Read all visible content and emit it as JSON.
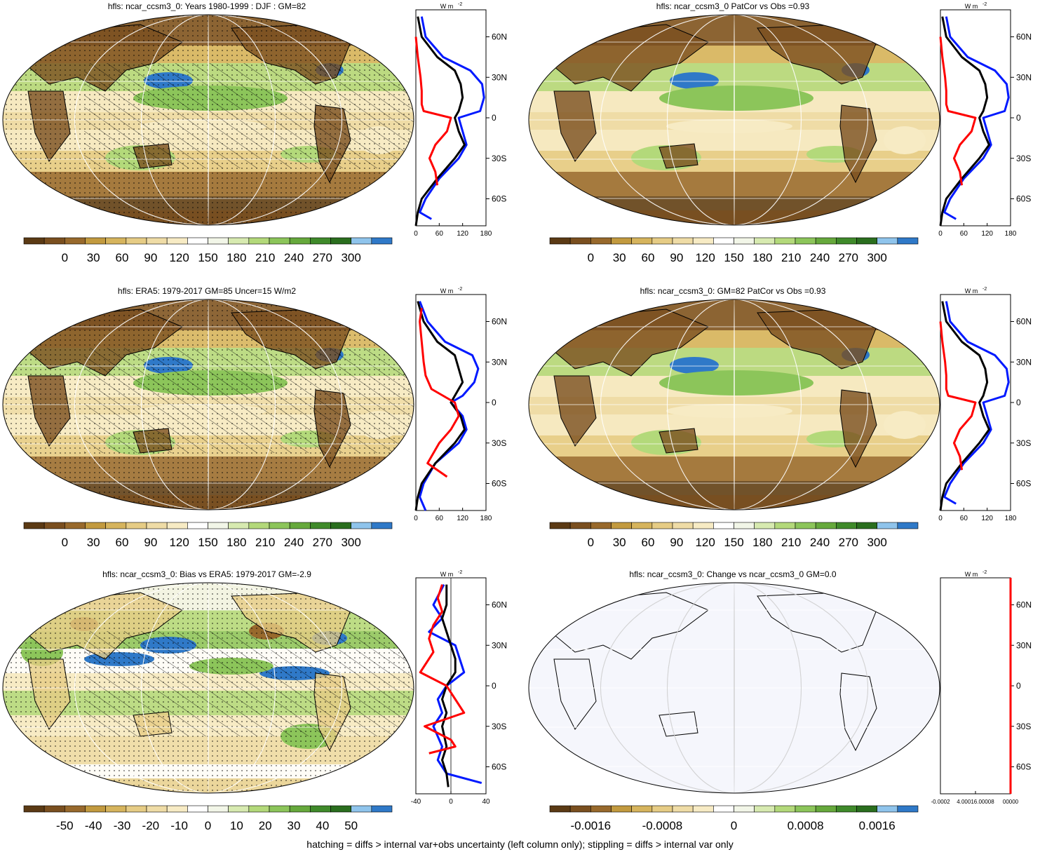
{
  "footer": "hatching = diffs > internal var+obs uncertainty (left column only); stippling = diffs > internal var only",
  "colors": {
    "ramp": [
      "#5b3a14",
      "#7a4f1f",
      "#98692c",
      "#c29a3f",
      "#d6b45d",
      "#e6cc85",
      "#efdca6",
      "#f7ebc4",
      "#ffffff",
      "#f2f6e8",
      "#d7eab0",
      "#b3d97a",
      "#8cc55a",
      "#66a93c",
      "#3f8a2a",
      "#2a6e1e",
      "#8fc4ec",
      "#2f79c8"
    ],
    "model_line": "#000000",
    "ref_line": "#0019ff",
    "diff_line": "#ff0000"
  },
  "panels": [
    {
      "title": "hfls: ncar_ccsm3_0: Years 1980-1999 : DJF : GM=82",
      "cbar_labels": [
        "0",
        "30",
        "60",
        "90",
        "120",
        "150",
        "180",
        "210",
        "240",
        "270",
        "300"
      ],
      "profile_unit": "W m",
      "profile_unit_sup": "-2",
      "lat_labels": [
        "60N",
        "30N",
        "0",
        "30S",
        "60S"
      ],
      "profile_xticks": [
        "0",
        "60",
        "120",
        "180"
      ],
      "hatching": true,
      "stippling": true,
      "ocean_fill": "#efdca6",
      "chart_data": {
        "type": "line",
        "title": "",
        "xlim": [
          0,
          180
        ],
        "ylim": [
          -80,
          80
        ],
        "series": [
          {
            "name": "",
            "color": "#0019ff",
            "y": [
              75,
              60,
              45,
              35,
              25,
              15,
              5,
              0,
              -10,
              -20,
              -30,
              -45,
              -60,
              -70,
              -75
            ],
            "x": [
              15,
              25,
              70,
              140,
              170,
              175,
              165,
              110,
              120,
              130,
              110,
              60,
              25,
              10,
              40
            ]
          },
          {
            "name": "",
            "color": "#000000",
            "y": [
              75,
              60,
              45,
              35,
              25,
              15,
              5,
              0,
              -10,
              -20,
              -30,
              -45,
              -60,
              -70,
              -80
            ],
            "x": [
              5,
              15,
              55,
              100,
              115,
              120,
              110,
              100,
              110,
              125,
              100,
              55,
              15,
              5,
              0
            ]
          },
          {
            "name": "",
            "color": "#ff0000",
            "y": [
              60,
              45,
              30,
              20,
              10,
              5,
              0,
              -10,
              -20,
              -30,
              -40,
              -50
            ],
            "x": [
              0,
              5,
              12,
              15,
              15,
              20,
              90,
              80,
              50,
              35,
              50,
              55
            ]
          }
        ]
      }
    },
    {
      "title": "hfls: ncar_ccsm3_0 PatCor vs Obs =0.93",
      "cbar_labels": [
        "0",
        "30",
        "60",
        "90",
        "120",
        "150",
        "180",
        "210",
        "240",
        "270",
        "300"
      ],
      "profile_unit": "W m",
      "profile_unit_sup": "-2",
      "lat_labels": [
        "60N",
        "30N",
        "0",
        "30S",
        "60S"
      ],
      "profile_xticks": [
        "0",
        "60",
        "120",
        "180"
      ],
      "hatching": false,
      "stippling": false,
      "ocean_fill": "#efdca6",
      "chart_data": {
        "type": "line",
        "title": "",
        "xlim": [
          0,
          180
        ],
        "ylim": [
          -80,
          80
        ],
        "series": [
          {
            "name": "",
            "color": "#0019ff",
            "y": [
              75,
              60,
              45,
              35,
              25,
              15,
              5,
              0,
              -10,
              -20,
              -30,
              -45,
              -60,
              -70,
              -75
            ],
            "x": [
              15,
              25,
              70,
              140,
              170,
              175,
              165,
              110,
              120,
              130,
              110,
              60,
              25,
              10,
              40
            ]
          },
          {
            "name": "",
            "color": "#000000",
            "y": [
              75,
              60,
              45,
              35,
              25,
              15,
              5,
              0,
              -10,
              -20,
              -30,
              -45,
              -60,
              -70,
              -80
            ],
            "x": [
              5,
              15,
              55,
              100,
              115,
              120,
              110,
              100,
              110,
              125,
              100,
              55,
              15,
              5,
              0
            ]
          },
          {
            "name": "",
            "color": "#ff0000",
            "y": [
              60,
              45,
              30,
              20,
              10,
              5,
              0,
              -10,
              -20,
              -30,
              -40,
              -50
            ],
            "x": [
              0,
              5,
              12,
              15,
              15,
              20,
              90,
              80,
              50,
              35,
              50,
              55
            ]
          }
        ]
      }
    },
    {
      "title": "hfls: ERA5: 1979-2017 GM=85 Uncer=15 W/m2",
      "cbar_labels": [
        "0",
        "30",
        "60",
        "90",
        "120",
        "150",
        "180",
        "210",
        "240",
        "270",
        "300"
      ],
      "profile_unit": "W m",
      "profile_unit_sup": "-2",
      "lat_labels": [
        "60N",
        "30N",
        "0",
        "30S",
        "60S"
      ],
      "profile_xticks": [
        "0",
        "60",
        "120",
        "180"
      ],
      "hatching": true,
      "stippling": true,
      "ocean_fill": "#f7ebc4",
      "chart_data": {
        "type": "line",
        "title": "",
        "xlim": [
          0,
          180
        ],
        "ylim": [
          -80,
          80
        ],
        "series": [
          {
            "name": "",
            "color": "#0019ff",
            "y": [
              75,
              60,
              45,
              35,
              25,
              15,
              5,
              0,
              -10,
              -20,
              -30,
              -45,
              -60,
              -70,
              -80
            ],
            "x": [
              10,
              30,
              75,
              145,
              160,
              150,
              120,
              90,
              120,
              130,
              110,
              50,
              20,
              10,
              25
            ]
          },
          {
            "name": "",
            "color": "#000000",
            "y": [
              75,
              60,
              45,
              35,
              25,
              15,
              5,
              0,
              -10,
              -20,
              -30,
              -45,
              -60,
              -70,
              -80
            ],
            "x": [
              5,
              20,
              55,
              100,
              110,
              120,
              100,
              90,
              115,
              125,
              100,
              50,
              15,
              5,
              0
            ]
          },
          {
            "name": "",
            "color": "#ff0000",
            "y": [
              70,
              60,
              45,
              30,
              20,
              10,
              5,
              0,
              -10,
              -20,
              -30,
              -45,
              -55
            ],
            "x": [
              15,
              10,
              15,
              20,
              25,
              40,
              70,
              100,
              110,
              90,
              60,
              30,
              80
            ]
          }
        ]
      }
    },
    {
      "title": "hfls: ncar_ccsm3_0: GM=82 PatCor vs Obs =0.93",
      "cbar_labels": [
        "0",
        "30",
        "60",
        "90",
        "120",
        "150",
        "180",
        "210",
        "240",
        "270",
        "300"
      ],
      "profile_unit": "W m",
      "profile_unit_sup": "-2",
      "lat_labels": [
        "60N",
        "30N",
        "0",
        "30S",
        "60S"
      ],
      "profile_xticks": [
        "0",
        "60",
        "120",
        "180"
      ],
      "hatching": false,
      "stippling": false,
      "ocean_fill": "#efdca6",
      "chart_data": {
        "type": "line",
        "title": "",
        "xlim": [
          0,
          180
        ],
        "ylim": [
          -80,
          80
        ],
        "series": [
          {
            "name": "",
            "color": "#0019ff",
            "y": [
              75,
              60,
              45,
              35,
              25,
              15,
              5,
              0,
              -10,
              -20,
              -30,
              -45,
              -60,
              -70,
              -75
            ],
            "x": [
              15,
              25,
              70,
              140,
              170,
              175,
              165,
              110,
              120,
              130,
              110,
              60,
              25,
              10,
              40
            ]
          },
          {
            "name": "",
            "color": "#000000",
            "y": [
              75,
              60,
              45,
              35,
              25,
              15,
              5,
              0,
              -10,
              -20,
              -30,
              -45,
              -60,
              -70,
              -80
            ],
            "x": [
              5,
              15,
              55,
              100,
              115,
              120,
              110,
              100,
              110,
              125,
              100,
              55,
              15,
              5,
              0
            ]
          },
          {
            "name": "",
            "color": "#ff0000",
            "y": [
              60,
              45,
              30,
              20,
              10,
              5,
              0,
              -10,
              -20,
              -30,
              -40,
              -50
            ],
            "x": [
              0,
              5,
              12,
              15,
              15,
              20,
              90,
              80,
              50,
              35,
              50,
              55
            ]
          }
        ]
      }
    },
    {
      "title": "hfls: ncar_ccsm3_0: Bias vs ERA5: 1979-2017 GM=-2.9",
      "cbar_labels": [
        "-50",
        "-40",
        "-30",
        "-20",
        "-10",
        "0",
        "10",
        "20",
        "30",
        "40",
        "50"
      ],
      "profile_unit": "W m",
      "profile_unit_sup": "-2",
      "lat_labels": [
        "60N",
        "30N",
        "0",
        "30S",
        "60S"
      ],
      "profile_xticks": [
        "-40",
        "0",
        "40"
      ],
      "hatching": true,
      "stippling": true,
      "ocean_fill": "#f7ebc4",
      "chart_data": {
        "type": "line",
        "title": "",
        "xlim": [
          -40,
          40
        ],
        "ylim": [
          -80,
          80
        ],
        "series": [
          {
            "name": "",
            "color": "#0019ff",
            "y": [
              75,
              60,
              50,
              40,
              30,
              20,
              10,
              0,
              -10,
              -20,
              -30,
              -45,
              -55,
              -65,
              -72
            ],
            "x": [
              -8,
              -20,
              -10,
              -25,
              5,
              10,
              15,
              -5,
              -15,
              -10,
              -20,
              -10,
              -15,
              -5,
              35
            ]
          },
          {
            "name": "",
            "color": "#000000",
            "y": [
              75,
              60,
              50,
              40,
              30,
              20,
              10,
              0,
              -10,
              -20,
              -30,
              -45,
              -55,
              -65,
              -75
            ],
            "x": [
              -5,
              -5,
              -10,
              -5,
              0,
              5,
              5,
              -5,
              -10,
              -5,
              -10,
              -5,
              -10,
              -5,
              -3
            ]
          },
          {
            "name": "",
            "color": "#ff0000",
            "y": [
              75,
              65,
              55,
              45,
              35,
              25,
              15,
              10,
              5,
              0,
              -10,
              -20,
              -30,
              -40,
              -45,
              -50
            ],
            "x": [
              -10,
              -15,
              -10,
              -20,
              -25,
              -20,
              -30,
              -35,
              -20,
              -5,
              5,
              15,
              -30,
              0,
              5,
              -25
            ]
          }
        ]
      }
    },
    {
      "title": "hfls: ncar_ccsm3_0: Change vs ncar_ccsm3_0 GM=0.0",
      "cbar_labels": [
        "-0.0016",
        "-0.0008",
        "0",
        "0.0008",
        "0.0016"
      ],
      "profile_unit": "W m",
      "profile_unit_sup": "-2",
      "lat_labels": [
        "60N",
        "30N",
        "0",
        "30S",
        "60S"
      ],
      "profile_xticks": [
        "-0.0002",
        "4.00016.00008",
        "00000"
      ],
      "hatching": false,
      "stippling": false,
      "ocean_fill": "#f5f6fc",
      "chart_data": {
        "type": "line",
        "title": "",
        "xlim": [
          -0.0002,
          0
        ],
        "ylim": [
          -80,
          80
        ],
        "series": [
          {
            "name": "",
            "color": "#000000",
            "y": [
              80,
              -80
            ],
            "x": [
              0,
              0
            ]
          },
          {
            "name": "",
            "color": "#0019ff",
            "y": [
              80,
              -80
            ],
            "x": [
              0,
              0
            ]
          },
          {
            "name": "",
            "color": "#ff0000",
            "y": [
              80,
              -80
            ],
            "x": [
              0,
              0
            ]
          }
        ]
      }
    }
  ]
}
